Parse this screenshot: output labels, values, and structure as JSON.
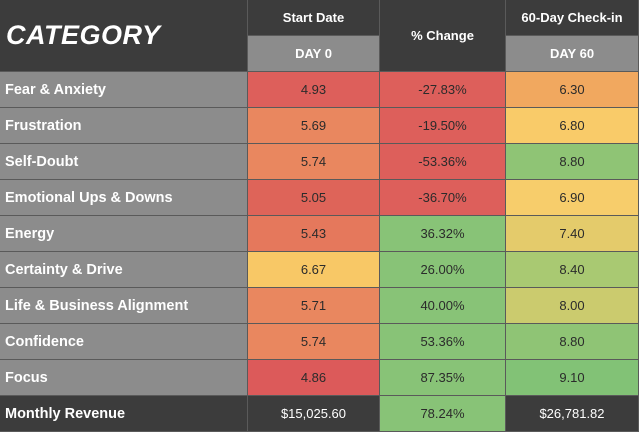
{
  "header": {
    "category_title": "CATEGORY",
    "start_date": "Start Date",
    "day0": "DAY 0",
    "pct_change": "% Change",
    "checkin": "60-Day Check-in",
    "day60": "DAY 60"
  },
  "rows": [
    {
      "label": "Fear & Anxiety",
      "day0": "4.93",
      "change": "-27.83%",
      "day60": "6.30",
      "c0": "#dd5f5b",
      "cc": "#dd5f5b",
      "c60": "#f1a85f"
    },
    {
      "label": "Frustration",
      "day0": "5.69",
      "change": "-19.50%",
      "day60": "6.80",
      "c0": "#e9875f",
      "cc": "#dd5f5b",
      "c60": "#f9cb69"
    },
    {
      "label": "Self-Doubt",
      "day0": "5.74",
      "change": "-53.36%",
      "day60": "8.80",
      "c0": "#e9875f",
      "cc": "#dd5f5b",
      "c60": "#8fc475"
    },
    {
      "label": "Emotional Ups & Downs",
      "day0": "5.05",
      "change": "-36.70%",
      "day60": "6.90",
      "c0": "#de6459",
      "cc": "#dd5f5b",
      "c60": "#f7cd6b"
    },
    {
      "label": "Energy",
      "day0": "5.43",
      "change": "36.32%",
      "day60": "7.40",
      "c0": "#e5785c",
      "cc": "#88c377",
      "c60": "#e4cb6b"
    },
    {
      "label": "Certainty & Drive",
      "day0": "6.67",
      "change": "26.00%",
      "day60": "8.40",
      "c0": "#f8c866",
      "cc": "#88c377",
      "c60": "#a9c972"
    },
    {
      "label": "Life & Business Alignment",
      "day0": "5.71",
      "change": "40.00%",
      "day60": "8.00",
      "c0": "#e9875f",
      "cc": "#88c377",
      "c60": "#cbcb6e"
    },
    {
      "label": "Confidence",
      "day0": "5.74",
      "change": "53.36%",
      "day60": "8.80",
      "c0": "#e9875f",
      "cc": "#88c377",
      "c60": "#8fc475"
    },
    {
      "label": "Focus",
      "day0": "4.86",
      "change": "87.35%",
      "day60": "9.10",
      "c0": "#dc5a5a",
      "cc": "#88c377",
      "c60": "#82c276"
    }
  ],
  "revenue": {
    "label": "Monthly Revenue",
    "day0": "$15,025.60",
    "change": "78.24%",
    "day60": "$26,781.82",
    "cc": "#88c377"
  }
}
